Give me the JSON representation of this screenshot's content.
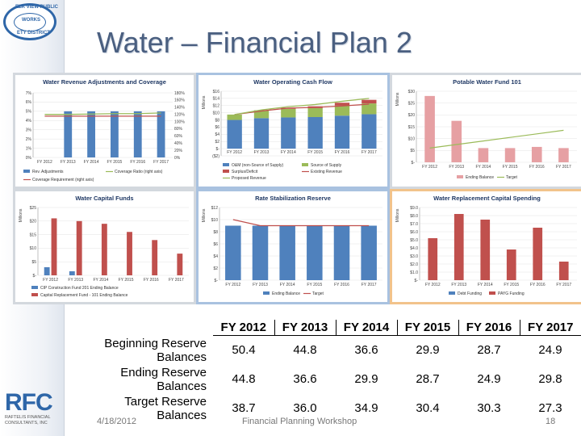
{
  "slide": {
    "title": "Water – Financial Plan 2",
    "footer_date": "4/18/2012",
    "footer_center": "Financial Planning Workshop",
    "page_number": "18"
  },
  "seal": {
    "top_text": "ELK VIEW PUBLIC",
    "middle_text": "WORKS",
    "bottom_text": "ETY DISTRICT"
  },
  "logo": {
    "big": "RFC",
    "line1": "RAFTELIS FINANCIAL",
    "line2": "CONSULTANTS, INC"
  },
  "colors": {
    "blue_bar": "#4f81bd",
    "red_bar": "#c0504d",
    "pink_bar": "#e6a0a3",
    "green_bar": "#9bbb59",
    "line_red": "#c0504d",
    "line_green": "#9bbb59",
    "table_text": "#000000"
  },
  "chart_data": [
    {
      "type": "bar",
      "title": "Water Revenue Adjustments and Coverage",
      "categories": [
        "FY 2012",
        "FY 2013",
        "FY 2014",
        "FY 2015",
        "FY 2016",
        "FY 2017"
      ],
      "y_ticks": [
        "7%",
        "6%",
        "5%",
        "4%",
        "3%",
        "2%",
        "1%",
        "0%"
      ],
      "y2_ticks": [
        "180%",
        "160%",
        "140%",
        "120%",
        "100%",
        "80%",
        "60%",
        "40%",
        "20%",
        "0%"
      ],
      "ylim": [
        0,
        7
      ],
      "series": [
        {
          "name": "Rev. Adjustments",
          "values": [
            0,
            5.0,
            5.0,
            5.0,
            5.0,
            5.0
          ]
        },
        {
          "name": "Coverage Ratio (right axis)",
          "values": [
            120,
            120,
            121,
            122,
            122,
            124
          ]
        },
        {
          "name": "Coverage Requirement (right axis)",
          "values": [
            115,
            115,
            115,
            115,
            115,
            115
          ]
        }
      ],
      "legend": "bottom"
    },
    {
      "type": "bar",
      "title": "Water Operating Cash Flow",
      "ylabel": "Millions",
      "categories": [
        "FY 2012",
        "FY 2013",
        "FY 2014",
        "FY 2015",
        "FY 2016",
        "FY 2017"
      ],
      "y_ticks": [
        "$16",
        "$14",
        "$12",
        "$10",
        "$8",
        "$6",
        "$4",
        "$2",
        "$-",
        "($2)"
      ],
      "ylim": [
        -2,
        16
      ],
      "series": [
        {
          "name": "O&M (non-Source of Supply)",
          "values": [
            8.0,
            8.5,
            8.7,
            8.8,
            9.2,
            9.6
          ]
        },
        {
          "name": "Source of Supply",
          "values": [
            1.5,
            2.2,
            2.4,
            2.5,
            2.8,
            3.0
          ]
        },
        {
          "name": "Surplus/Deficit",
          "values": [
            0,
            0,
            0.3,
            0.5,
            0.8,
            1.0
          ]
        },
        {
          "name": "Existing Revenue",
          "values": [
            9.5,
            10.5,
            11.3,
            11.5,
            11.9,
            12.4
          ]
        },
        {
          "name": "Proposed Revenue",
          "values": [
            9.5,
            10.8,
            11.7,
            12.3,
            13.2,
            14.0
          ]
        }
      ],
      "legend": "bottom"
    },
    {
      "type": "bar",
      "title": "Potable Water Fund 101",
      "ylabel": "Millions",
      "categories": [
        "FY 2012",
        "FY 2013",
        "FY 2014",
        "FY 2015",
        "FY 2016",
        "FY 2017"
      ],
      "y_ticks": [
        "$30",
        "$25",
        "$20",
        "$15",
        "$10",
        "$5",
        "$-"
      ],
      "ylim": [
        0,
        30
      ],
      "series": [
        {
          "name": "Ending Balance",
          "values": [
            28.0,
            17.5,
            6.0,
            6.0,
            6.5,
            6.0
          ]
        },
        {
          "name": "Target",
          "values": [
            6.0,
            7.5,
            9.0,
            10.5,
            12.0,
            13.5
          ]
        }
      ],
      "legend": "bottom"
    },
    {
      "type": "bar",
      "title": "Water Capital Funds",
      "ylabel": "Millions",
      "categories": [
        "FY 2012",
        "FY 2013",
        "FY 2014",
        "FY 2015",
        "FY 2016",
        "FY 2017"
      ],
      "y_ticks": [
        "$25",
        "$20",
        "$15",
        "$10",
        "$5",
        "$-"
      ],
      "ylim": [
        0,
        25
      ],
      "series": [
        {
          "name": "CIP Construction Fund 201 Ending Balance",
          "values": [
            3.0,
            1.5,
            0,
            0,
            0,
            0
          ]
        },
        {
          "name": "Capital Replacement Fund - 101 Ending Balance",
          "values": [
            21.0,
            20.0,
            19.0,
            16.0,
            13.0,
            8.0
          ]
        }
      ],
      "legend": "bottom"
    },
    {
      "type": "bar",
      "title": "Rate Stabilization Reserve",
      "ylabel": "Millions",
      "categories": [
        "FY 2012",
        "FY 2013",
        "FY 2014",
        "FY 2015",
        "FY 2016",
        "FY 2017"
      ],
      "y_ticks": [
        "$12",
        "$10",
        "$8",
        "$6",
        "$4",
        "$2",
        "$-"
      ],
      "ylim": [
        0,
        12
      ],
      "series": [
        {
          "name": "Ending Balance",
          "values": [
            9.0,
            9.0,
            9.0,
            9.0,
            9.0,
            9.0
          ]
        },
        {
          "name": "Target",
          "values": [
            10.0,
            9.0,
            9.0,
            9.0,
            9.0,
            9.0
          ]
        }
      ],
      "legend": "bottom"
    },
    {
      "type": "bar",
      "title": "Water Replacement Capital Spending",
      "ylabel": "Millions",
      "categories": [
        "FY 2012",
        "FY 2013",
        "FY 2014",
        "FY 2015",
        "FY 2016",
        "FY 2017"
      ],
      "y_ticks": [
        "$9.0",
        "$8.0",
        "$7.0",
        "$6.0",
        "$5.0",
        "$4.0",
        "$3.0",
        "$2.0",
        "$1.0",
        "$-"
      ],
      "ylim": [
        0,
        9
      ],
      "series": [
        {
          "name": "Debt Funding",
          "values": [
            0,
            0,
            0,
            0,
            0,
            0
          ]
        },
        {
          "name": "PAYG Funding",
          "values": [
            5.2,
            8.2,
            7.5,
            3.8,
            6.5,
            2.3
          ]
        }
      ],
      "legend": "bottom"
    },
    {
      "type": "table",
      "columns": [
        "FY 2012",
        "FY 2013",
        "FY 2014",
        "FY 2015",
        "FY 2016",
        "FY 2017"
      ],
      "rows": [
        {
          "label": "Beginning Reserve Balances",
          "values": [
            "50.4",
            "44.8",
            "36.6",
            "29.9",
            "28.7",
            "24.9"
          ]
        },
        {
          "label": "Ending Reserve Balances",
          "values": [
            "44.8",
            "36.6",
            "29.9",
            "28.7",
            "24.9",
            "29.8"
          ]
        },
        {
          "label": "Target Reserve Balances",
          "values": [
            "38.7",
            "36.0",
            "34.9",
            "30.4",
            "30.3",
            "27.3"
          ]
        }
      ]
    }
  ]
}
